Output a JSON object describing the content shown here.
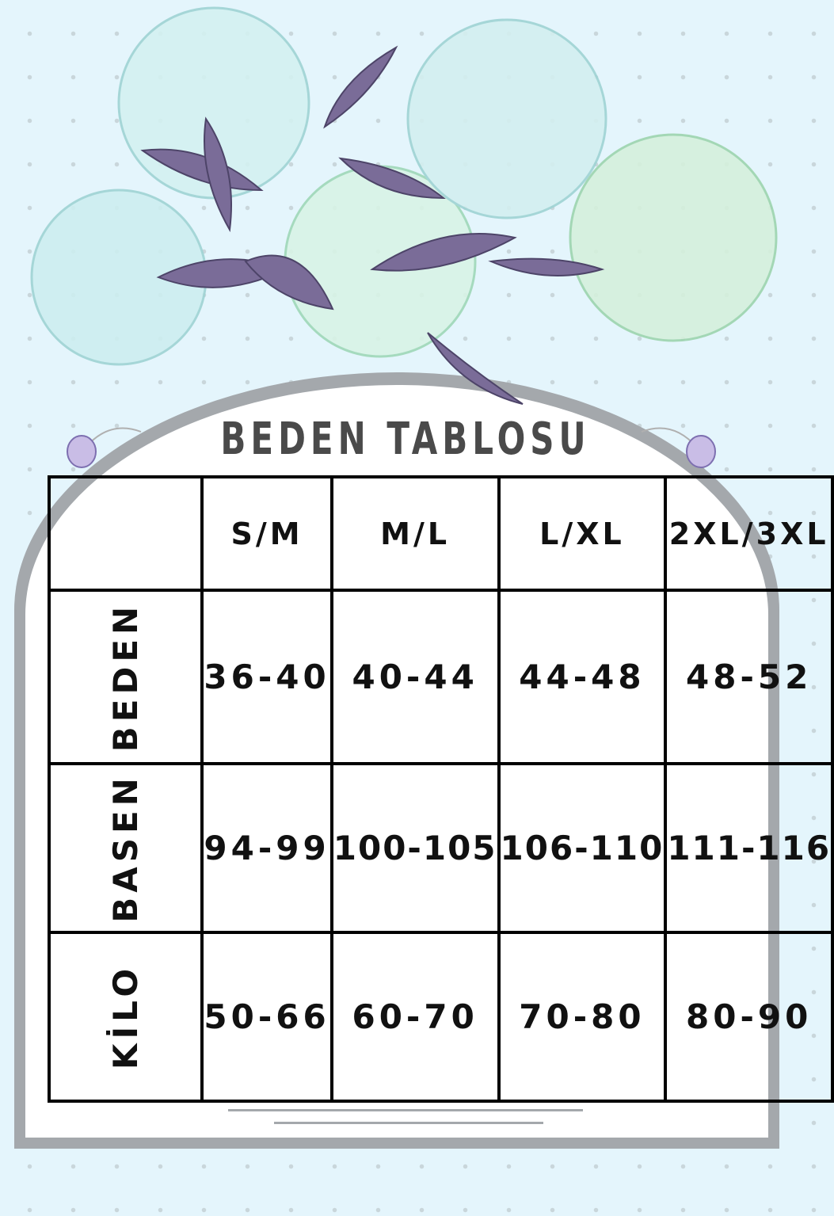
{
  "title": "BEDEN TABLOSU",
  "table": {
    "columns": [
      "S/M",
      "M/L",
      "L/XL",
      "2XL/3XL"
    ],
    "rows": [
      {
        "label": "BEDEN",
        "values": [
          "36-40",
          "40-44",
          "44-48",
          "48-52"
        ]
      },
      {
        "label": "BASEN",
        "values": [
          "94-99",
          "100-105",
          "106-110",
          "111-116"
        ]
      },
      {
        "label": "KİLO",
        "values": [
          "50-66",
          "60-70",
          "70-80",
          "80-90"
        ]
      }
    ]
  },
  "colors": {
    "background": "#e4f5fc",
    "frame": "#a4a8ac",
    "flowers": "#bfe8e6",
    "leaves": "#6f6590",
    "text": "#111111"
  }
}
